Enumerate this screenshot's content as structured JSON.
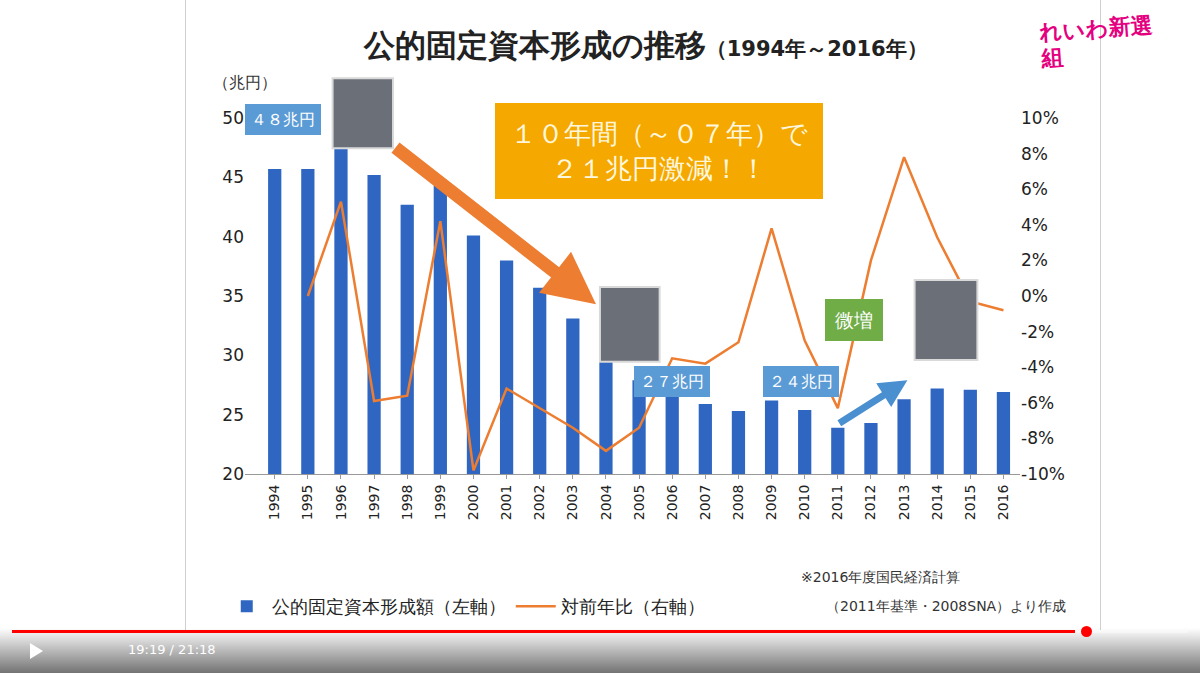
{
  "chart_data": {
    "type": "bar",
    "title": "公的固定資本形成の推移",
    "subtitle": "（1994年～2016年）",
    "y_label": "（兆円）",
    "categories": [
      "1994",
      "1995",
      "1996",
      "1997",
      "1998",
      "1999",
      "2000",
      "2001",
      "2002",
      "2003",
      "2004",
      "2005",
      "2006",
      "2007",
      "2008",
      "2009",
      "2010",
      "2011",
      "2012",
      "2013",
      "2014",
      "2015",
      "2016"
    ],
    "series": [
      {
        "name": "公的固定資本形成額（左軸）",
        "type": "bar",
        "color": "#2f66c2",
        "values": [
          45.7,
          45.7,
          48.0,
          45.2,
          42.7,
          44.3,
          40.1,
          38.0,
          35.7,
          33.1,
          30.2,
          27.9,
          26.8,
          25.9,
          25.3,
          26.2,
          25.4,
          23.9,
          24.3,
          26.3,
          27.2,
          27.1,
          26.9
        ]
      },
      {
        "name": "対前年比（右軸）",
        "type": "line",
        "axis": "y2",
        "color": "#ed7d31",
        "values": [
          null,
          0.0,
          5.3,
          -5.9,
          -5.6,
          4.2,
          -9.8,
          -5.2,
          -6.3,
          -7.4,
          -8.7,
          -7.4,
          -3.5,
          -3.8,
          -2.6,
          3.8,
          -2.5,
          -6.3,
          2.0,
          7.8,
          3.3,
          -0.3,
          -0.8
        ]
      }
    ],
    "ylim": [
      20,
      50
    ],
    "yticks": [
      20,
      25,
      30,
      35,
      40,
      45,
      50
    ],
    "y2lim": [
      -10,
      10
    ],
    "y2ticks": [
      {
        "value": -10,
        "label": "-10%"
      },
      {
        "value": -8,
        "label": "-8%"
      },
      {
        "value": -6,
        "label": "-6%"
      },
      {
        "value": -4,
        "label": "-4%"
      },
      {
        "value": -2,
        "label": "-2%"
      },
      {
        "value": 0,
        "label": "0%"
      },
      {
        "value": 2,
        "label": "2%"
      },
      {
        "value": 4,
        "label": "4%"
      },
      {
        "value": 6,
        "label": "6%"
      },
      {
        "value": 8,
        "label": "8%"
      },
      {
        "value": 10,
        "label": "10%"
      }
    ],
    "grid": false,
    "legend": "bottom",
    "annotations": [
      "４８兆円",
      "１０年間（～０７年）で\n２１兆円激減！！",
      "２７兆円",
      "２４兆円",
      "微増"
    ],
    "source_note": "※2016年度国民経済計算",
    "source_suffix": "（2011年基準・2008SNA）より作成"
  },
  "logo": "れいわ新選組",
  "player": {
    "time": "19:19 / 21:18"
  }
}
